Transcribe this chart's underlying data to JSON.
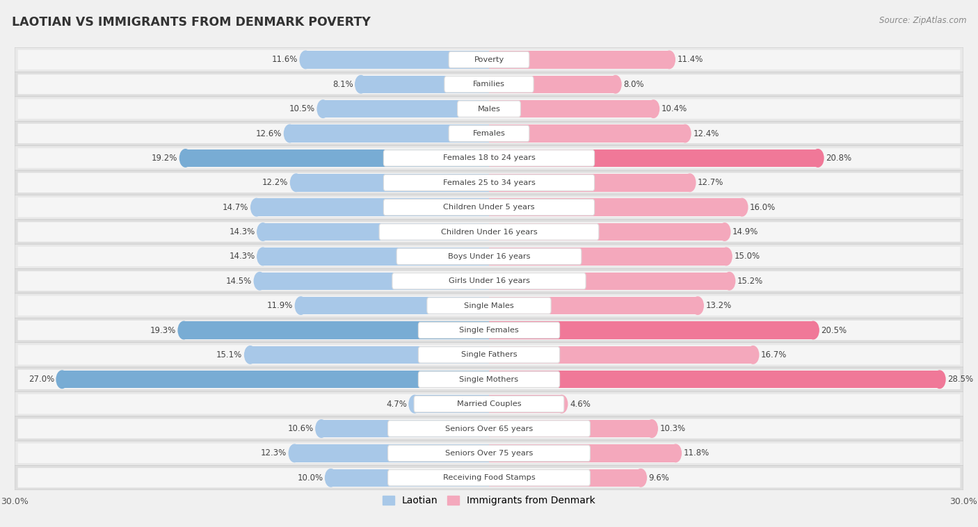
{
  "title": "LAOTIAN VS IMMIGRANTS FROM DENMARK POVERTY",
  "source": "Source: ZipAtlas.com",
  "categories": [
    "Poverty",
    "Families",
    "Males",
    "Females",
    "Females 18 to 24 years",
    "Females 25 to 34 years",
    "Children Under 5 years",
    "Children Under 16 years",
    "Boys Under 16 years",
    "Girls Under 16 years",
    "Single Males",
    "Single Females",
    "Single Fathers",
    "Single Mothers",
    "Married Couples",
    "Seniors Over 65 years",
    "Seniors Over 75 years",
    "Receiving Food Stamps"
  ],
  "laotian": [
    11.6,
    8.1,
    10.5,
    12.6,
    19.2,
    12.2,
    14.7,
    14.3,
    14.3,
    14.5,
    11.9,
    19.3,
    15.1,
    27.0,
    4.7,
    10.6,
    12.3,
    10.0
  ],
  "denmark": [
    11.4,
    8.0,
    10.4,
    12.4,
    20.8,
    12.7,
    16.0,
    14.9,
    15.0,
    15.2,
    13.2,
    20.5,
    16.7,
    28.5,
    4.6,
    10.3,
    11.8,
    9.6
  ],
  "laotian_color": "#a8c8e8",
  "denmark_color": "#f4a8bc",
  "laotian_highlight_color": "#78acd4",
  "denmark_highlight_color": "#f07898",
  "highlight_rows": [
    4,
    11,
    13
  ],
  "xlim": 30.0,
  "legend_laotian": "Laotian",
  "legend_denmark": "Immigrants from Denmark",
  "background_color": "#f0f0f0",
  "row_bg_color": "#e8e8e8",
  "row_bar_bg": "#f8f8f8"
}
